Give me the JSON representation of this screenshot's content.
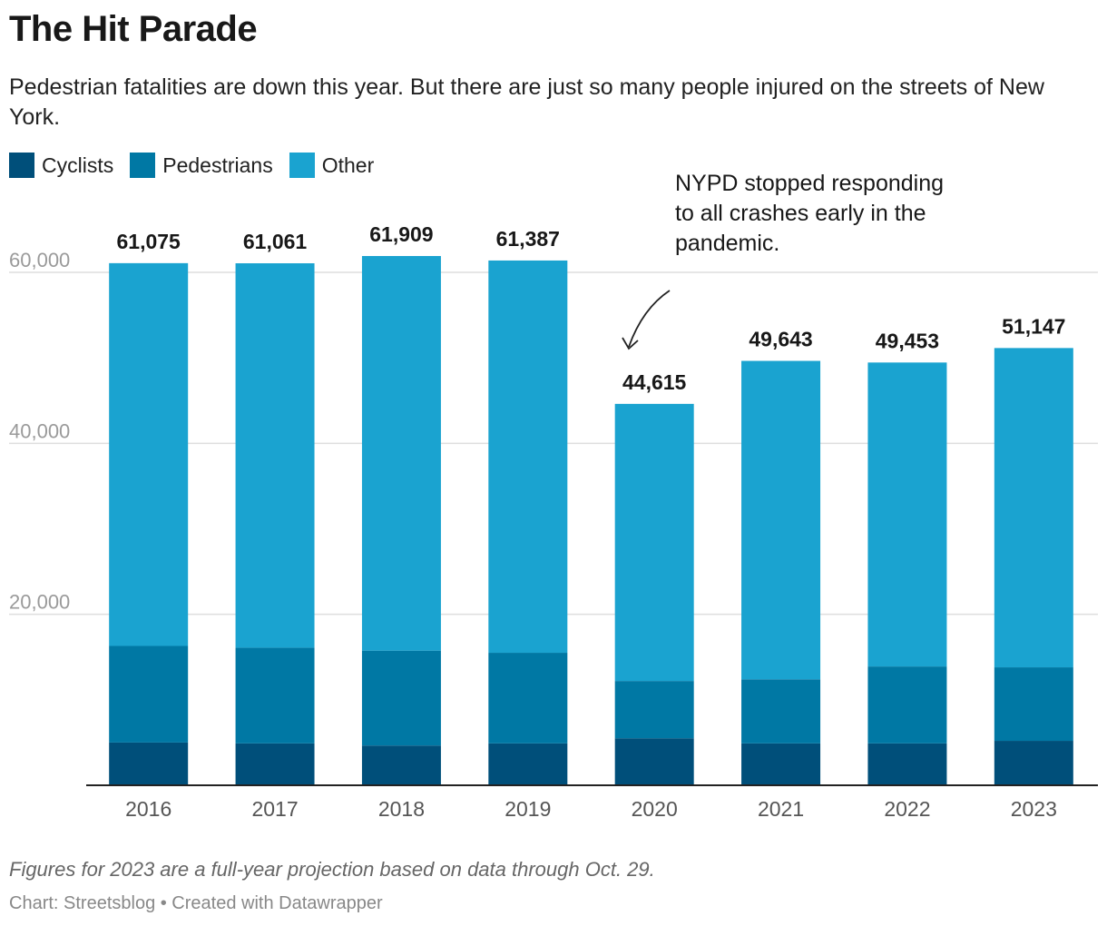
{
  "header": {
    "title": "The Hit Parade",
    "subtitle": "Pedestrian fatalities are down this year. But there are just so many people injured on the streets of New York."
  },
  "legend": [
    {
      "label": "Cyclists",
      "color": "#004f7a"
    },
    {
      "label": "Pedestrians",
      "color": "#0078a4"
    },
    {
      "label": "Other",
      "color": "#1aa3d0"
    }
  ],
  "annotation": {
    "text": "NYPD stopped responding to all crashes early in the pandemic."
  },
  "footer": {
    "note": "Figures for 2023 are a full-year projection based on data through Oct. 29.",
    "credit": "Chart: Streetsblog • Created with Datawrapper"
  },
  "chart_data": {
    "type": "bar",
    "stacked": true,
    "title": "The Hit Parade",
    "categories": [
      "2016",
      "2017",
      "2018",
      "2019",
      "2020",
      "2021",
      "2022",
      "2023"
    ],
    "series": [
      {
        "name": "Cyclists",
        "color": "#004f7a",
        "values": [
          5000,
          4900,
          4650,
          4900,
          5500,
          4900,
          4900,
          5200
        ]
      },
      {
        "name": "Pedestrians",
        "color": "#0078a4",
        "values": [
          11300,
          11200,
          11100,
          10600,
          6700,
          7500,
          9000,
          8600
        ]
      },
      {
        "name": "Other",
        "color": "#1aa3d0",
        "values": [
          44775,
          44961,
          46159,
          45887,
          32415,
          37243,
          35553,
          37347
        ]
      }
    ],
    "totals": [
      61075,
      61061,
      61909,
      61387,
      44615,
      49643,
      49453,
      51147
    ],
    "total_labels": [
      "61,075",
      "61,061",
      "61,909",
      "61,387",
      "44,615",
      "49,643",
      "49,453",
      "51,147"
    ],
    "y_ticks": [
      20000,
      40000,
      60000
    ],
    "y_tick_labels": [
      "20,000",
      "40,000",
      "60,000"
    ],
    "ylim": [
      0,
      60000
    ],
    "xlabel": "",
    "ylabel": "",
    "grid": true,
    "legend_position": "top-left"
  }
}
